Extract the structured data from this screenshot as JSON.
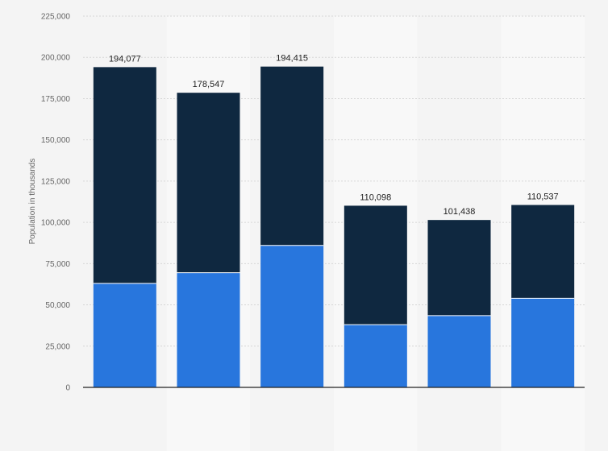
{
  "chart_data": {
    "type": "bar",
    "stacked": true,
    "categories": [
      "",
      "",
      "",
      "",
      "",
      ""
    ],
    "series": [
      {
        "values": [
          63000,
          69500,
          86000,
          38000,
          43500,
          54000
        ]
      },
      {
        "values": [
          131077,
          109047,
          108415,
          72098,
          57938,
          56537
        ]
      }
    ],
    "totals": [
      194077,
      178547,
      194415,
      110098,
      101438,
      110537
    ],
    "total_labels": [
      "194,077",
      "178,547",
      "194,415",
      "110,098",
      "101,438",
      "110,537"
    ],
    "ylabel": "Population in thousands",
    "ylim": [
      0,
      225000
    ],
    "yticks": [
      0,
      25000,
      50000,
      75000,
      100000,
      125000,
      150000,
      175000,
      200000,
      225000
    ],
    "ytick_labels": [
      "0",
      "25,000",
      "50,000",
      "75,000",
      "100,000",
      "125,000",
      "150,000",
      "175,000",
      "200,000",
      "225,000"
    ],
    "grid": true,
    "colors": {
      "series": [
        "#2876dd",
        "#0f2840"
      ],
      "page_background": "#f4f4f4",
      "band_light": "#f8f8f8",
      "band_dark": "#f4f4f4",
      "grid": "#d6d6d6",
      "axis": "#222222"
    }
  }
}
